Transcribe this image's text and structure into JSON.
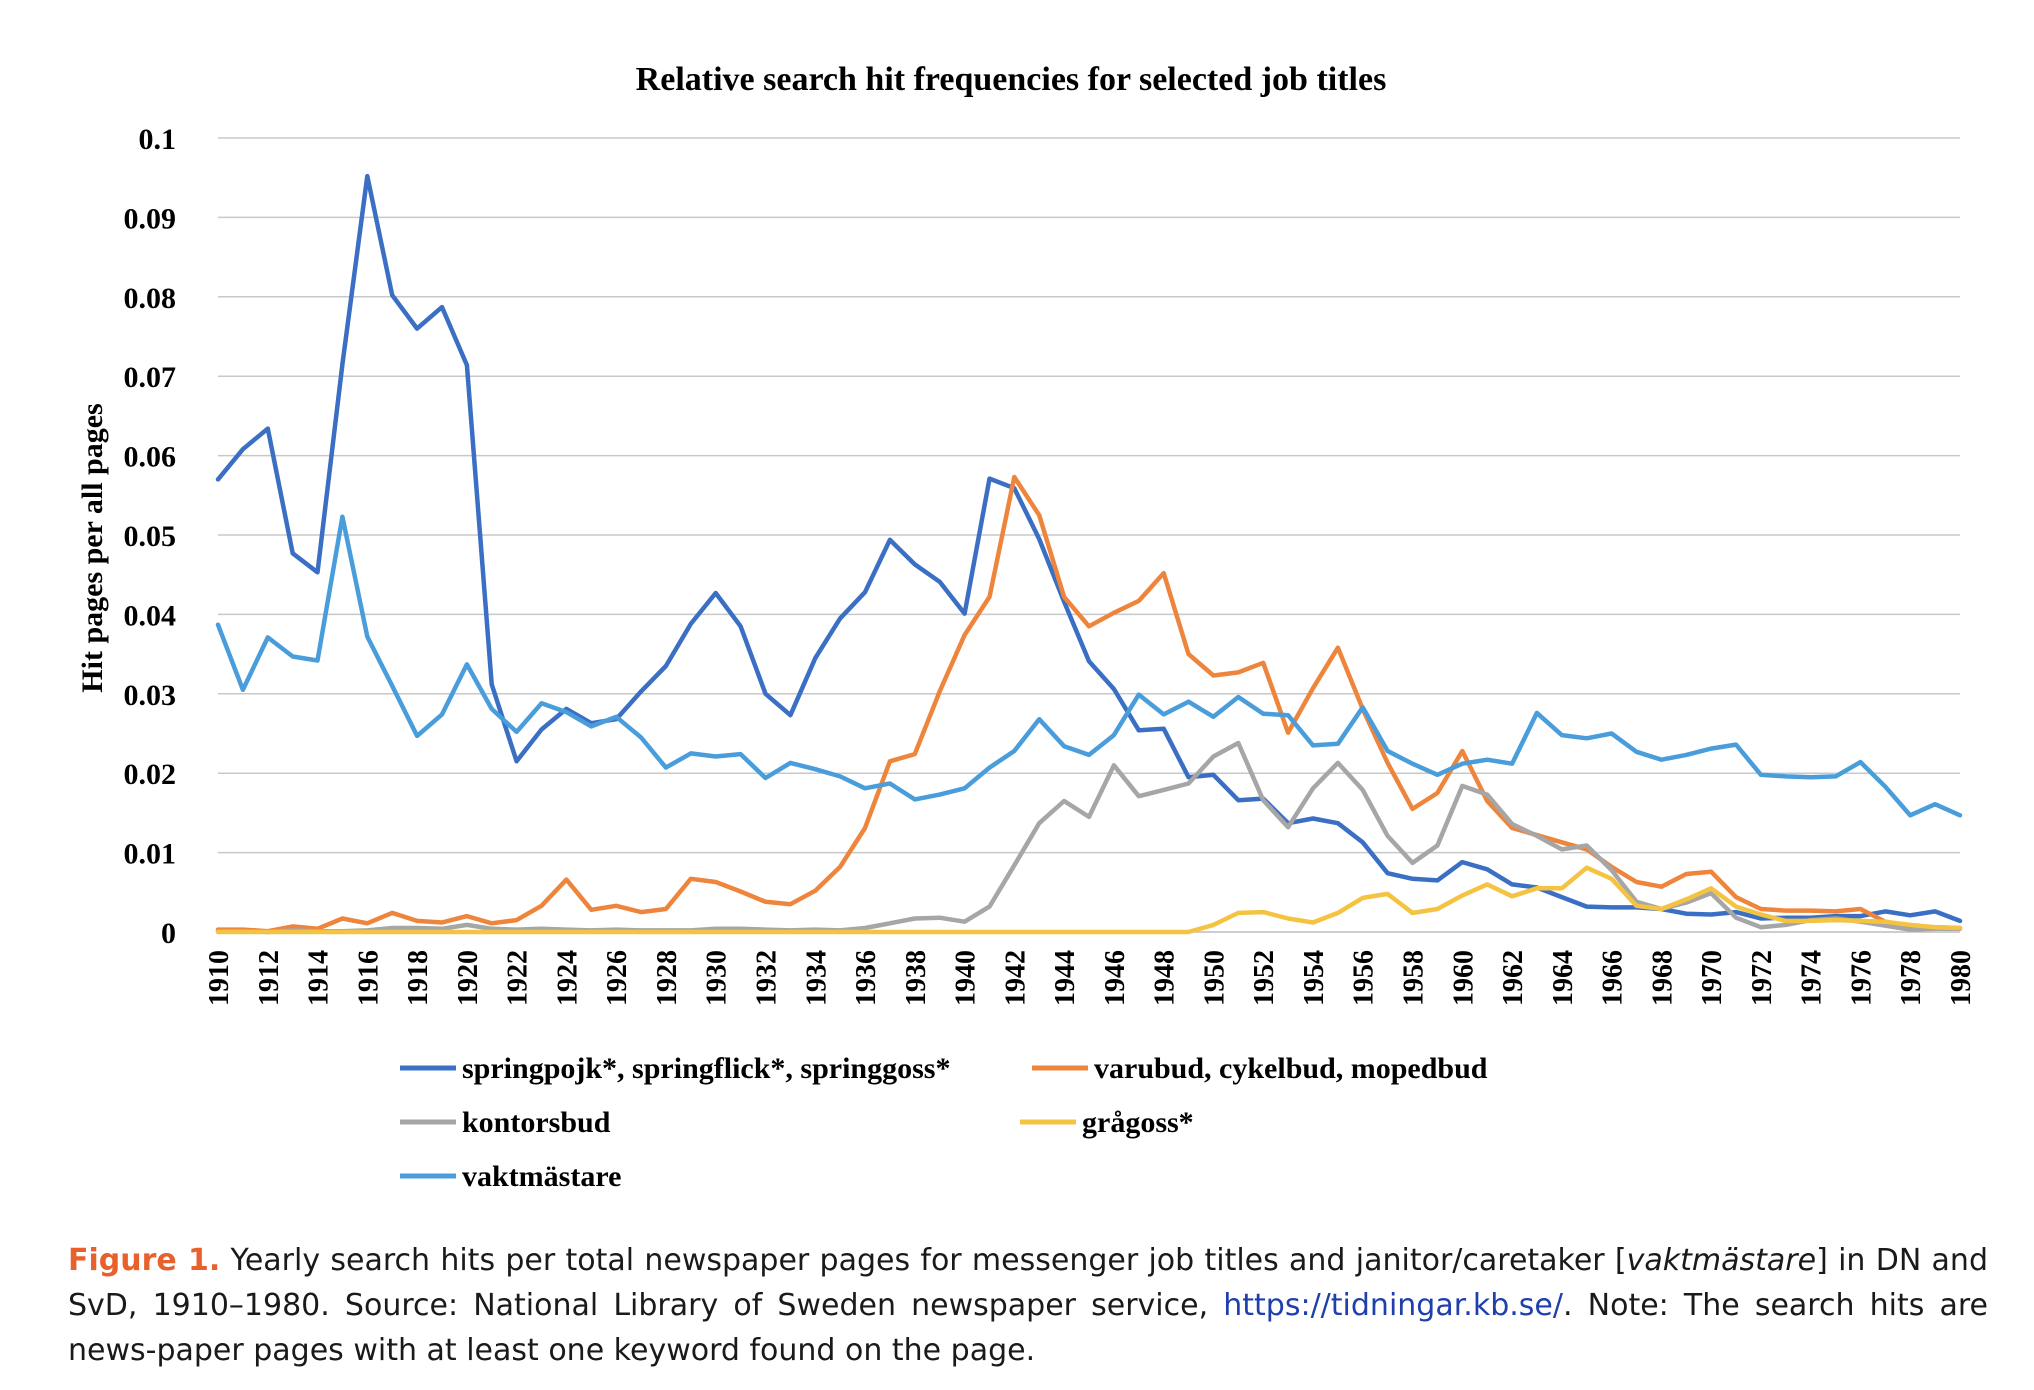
{
  "chart_data": {
    "type": "line",
    "title": "Relative search hit frequencies for selected job titles",
    "ylabel": "Hit pages per all pages",
    "xlabel": "",
    "ylim": [
      0,
      0.1
    ],
    "yticks": [
      "0",
      "0.01",
      "0.02",
      "0.03",
      "0.04",
      "0.05",
      "0.06",
      "0.07",
      "0.08",
      "0.09",
      "0.1"
    ],
    "xticks": [
      "1910",
      "1912",
      "1914",
      "1916",
      "1918",
      "1920",
      "1922",
      "1924",
      "1926",
      "1928",
      "1930",
      "1932",
      "1934",
      "1936",
      "1938",
      "1940",
      "1942",
      "1944",
      "1946",
      "1948",
      "1950",
      "1952",
      "1954",
      "1956",
      "1958",
      "1960",
      "1962",
      "1964",
      "1966",
      "1968",
      "1970",
      "1972",
      "1974",
      "1976",
      "1978",
      "1980"
    ],
    "grid": "horizontal",
    "legend_position": "bottom",
    "x": [
      1910,
      1911,
      1912,
      1913,
      1914,
      1915,
      1916,
      1917,
      1918,
      1919,
      1920,
      1921,
      1922,
      1923,
      1924,
      1925,
      1926,
      1927,
      1928,
      1929,
      1930,
      1931,
      1932,
      1933,
      1934,
      1935,
      1936,
      1937,
      1938,
      1939,
      1940,
      1941,
      1942,
      1943,
      1944,
      1945,
      1946,
      1947,
      1948,
      1949,
      1950,
      1951,
      1952,
      1953,
      1954,
      1955,
      1956,
      1957,
      1958,
      1959,
      1960,
      1961,
      1962,
      1963,
      1964,
      1965,
      1966,
      1967,
      1968,
      1969,
      1970,
      1971,
      1972,
      1973,
      1974,
      1975,
      1976,
      1977,
      1978,
      1979,
      1980
    ],
    "series": [
      {
        "name": "springpojk*, springflick*, springgoss*",
        "color": "#3a6fc4",
        "values": [
          0.057,
          0.0608,
          0.0634,
          0.0477,
          0.0453,
          0.0715,
          0.0952,
          0.0802,
          0.076,
          0.0787,
          0.0714,
          0.0312,
          0.0215,
          0.0255,
          0.0281,
          0.0263,
          0.0268,
          0.0303,
          0.0335,
          0.0388,
          0.0427,
          0.0385,
          0.03,
          0.0273,
          0.0345,
          0.0395,
          0.0428,
          0.0494,
          0.0463,
          0.0441,
          0.0401,
          0.0571,
          0.0559,
          0.0495,
          0.0416,
          0.0341,
          0.0306,
          0.0254,
          0.0256,
          0.0195,
          0.0198,
          0.0166,
          0.0168,
          0.0137,
          0.0143,
          0.0137,
          0.0113,
          0.0074,
          0.0067,
          0.0065,
          0.0088,
          0.0079,
          0.006,
          0.0056,
          0.0044,
          0.0032,
          0.0031,
          0.0031,
          0.0029,
          0.0023,
          0.0022,
          0.0025,
          0.0017,
          0.0018,
          0.0018,
          0.002,
          0.002,
          0.0026,
          0.0021,
          0.0026,
          0.0014
        ]
      },
      {
        "name": "varubud, cykelbud, mopedbud",
        "color": "#ee853c",
        "values": [
          0.0003,
          0.0003,
          0.0001,
          0.0007,
          0.0004,
          0.0017,
          0.0011,
          0.0024,
          0.0014,
          0.0012,
          0.002,
          0.0011,
          0.0015,
          0.0033,
          0.0066,
          0.0028,
          0.0033,
          0.0025,
          0.0029,
          0.0067,
          0.0063,
          0.0051,
          0.0038,
          0.0035,
          0.0052,
          0.0082,
          0.0131,
          0.0215,
          0.0224,
          0.0303,
          0.0374,
          0.0422,
          0.0573,
          0.0525,
          0.0422,
          0.0385,
          0.0402,
          0.0417,
          0.0452,
          0.035,
          0.0323,
          0.0327,
          0.0339,
          0.0251,
          0.0307,
          0.0358,
          0.0281,
          0.0213,
          0.0155,
          0.0175,
          0.0228,
          0.0165,
          0.0131,
          0.0122,
          0.0113,
          0.0104,
          0.0082,
          0.0063,
          0.0057,
          0.0073,
          0.0076,
          0.0044,
          0.0029,
          0.0027,
          0.0027,
          0.0026,
          0.0029,
          0.0013,
          0.0007,
          0.0006,
          0.0005
        ]
      },
      {
        "name": "kontorsbud",
        "color": "#a6a6a6",
        "values": [
          0.0001,
          0.0001,
          0,
          0.0002,
          0.0001,
          0.0001,
          0.0002,
          0.0005,
          0.0005,
          0.0004,
          0.0009,
          0.0004,
          0.0003,
          0.0004,
          0.0003,
          0.0002,
          0.0003,
          0.0002,
          0.0002,
          0.0002,
          0.0004,
          0.0004,
          0.0003,
          0.0002,
          0.0003,
          0.0002,
          0.0005,
          0.0011,
          0.0017,
          0.0018,
          0.0013,
          0.0032,
          0.0084,
          0.0137,
          0.0165,
          0.0145,
          0.021,
          0.0171,
          0.0179,
          0.0187,
          0.0221,
          0.0238,
          0.0166,
          0.0132,
          0.0181,
          0.0213,
          0.0179,
          0.0121,
          0.0087,
          0.0109,
          0.0184,
          0.0173,
          0.0136,
          0.0121,
          0.0104,
          0.0109,
          0.0078,
          0.0038,
          0.0029,
          0.0037,
          0.0049,
          0.0018,
          0.0006,
          0.0009,
          0.0015,
          0.0017,
          0.0013,
          0.0008,
          0.0003,
          0.0004,
          0.0004
        ]
      },
      {
        "name": "grågoss*",
        "color": "#f5c342",
        "values": [
          0,
          0,
          0,
          0,
          0,
          0,
          0,
          0,
          0,
          0,
          0,
          0,
          0,
          0,
          0,
          0,
          0,
          0,
          0,
          0,
          0,
          0,
          0,
          0,
          0,
          0,
          0,
          0,
          0,
          0,
          0,
          0,
          0,
          0,
          0,
          0,
          0,
          0,
          0,
          0,
          0.0009,
          0.0024,
          0.0025,
          0.0017,
          0.0012,
          0.0024,
          0.0043,
          0.0048,
          0.0024,
          0.0029,
          0.0046,
          0.006,
          0.0045,
          0.0055,
          0.0055,
          0.0081,
          0.0067,
          0.0033,
          0.0029,
          0.0041,
          0.0055,
          0.0032,
          0.0022,
          0.0014,
          0.0014,
          0.0015,
          0.0014,
          0.0013,
          0.0009,
          0.0006,
          0.0005
        ]
      },
      {
        "name": "vaktmästare",
        "color": "#4a9ddb",
        "values": [
          0.0387,
          0.0305,
          0.0371,
          0.0347,
          0.0342,
          0.0523,
          0.0372,
          0.031,
          0.0247,
          0.0274,
          0.0337,
          0.0281,
          0.0252,
          0.0288,
          0.0277,
          0.0259,
          0.0271,
          0.0245,
          0.0207,
          0.0225,
          0.0221,
          0.0224,
          0.0194,
          0.0213,
          0.0205,
          0.0196,
          0.0181,
          0.0187,
          0.0167,
          0.0173,
          0.0181,
          0.0207,
          0.0228,
          0.0268,
          0.0234,
          0.0223,
          0.0248,
          0.0299,
          0.0274,
          0.029,
          0.0271,
          0.0296,
          0.0275,
          0.0273,
          0.0235,
          0.0237,
          0.0283,
          0.0228,
          0.0212,
          0.0198,
          0.0212,
          0.0217,
          0.0212,
          0.0276,
          0.0248,
          0.0244,
          0.025,
          0.0227,
          0.0217,
          0.0223,
          0.0231,
          0.0236,
          0.0198,
          0.0196,
          0.0195,
          0.0196,
          0.0214,
          0.0183,
          0.0147,
          0.0161,
          0.0147
        ]
      }
    ]
  },
  "caption": {
    "label": "Figure 1.",
    "part1": " Yearly search hits per total newspaper pages for messenger job titles and janitor/caretaker [",
    "italic": "vaktmästare",
    "part2": "] in DN and SvD, 1910–1980. Source: National Library of Sweden newspaper service, ",
    "link": "https://tidningar.kb.se/",
    "part3": ". Note: The search hits are news-paper pages with at least one keyword found on the page."
  }
}
